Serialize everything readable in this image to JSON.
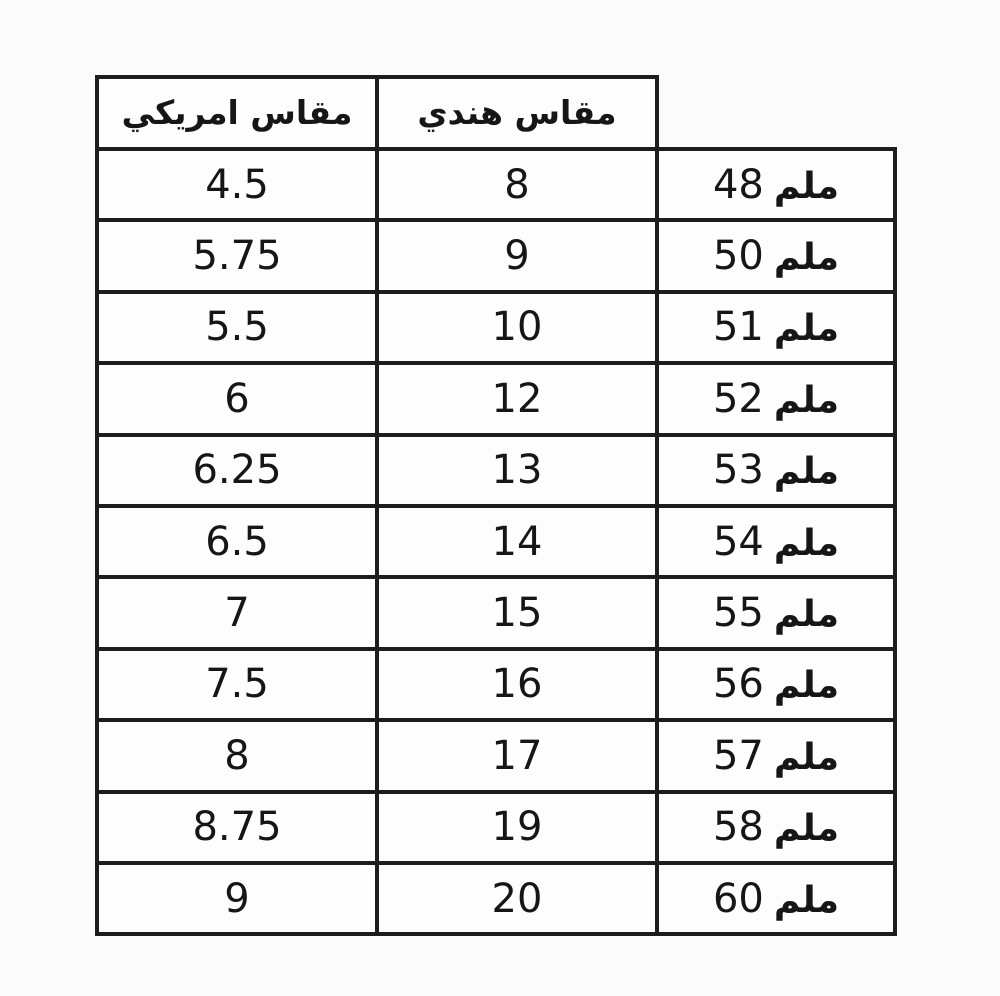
{
  "colors": {
    "background": "#fbfbfb",
    "cell_background": "#fdfdfd",
    "border": "#1d1d1d",
    "text": "#161616"
  },
  "chart_data": {
    "type": "table",
    "title": "",
    "headers": {
      "american": "مقاس امريكي",
      "indian": "مقاس هندي",
      "mm": ""
    },
    "mm_unit": "ملم",
    "rows": [
      {
        "american": "4.5",
        "indian": "8",
        "mm_value": "48"
      },
      {
        "american": "5.75",
        "indian": "9",
        "mm_value": "50"
      },
      {
        "american": "5.5",
        "indian": "10",
        "mm_value": "51"
      },
      {
        "american": "6",
        "indian": "12",
        "mm_value": "52"
      },
      {
        "american": "6.25",
        "indian": "13",
        "mm_value": "53"
      },
      {
        "american": "6.5",
        "indian": "14",
        "mm_value": "54"
      },
      {
        "american": "7",
        "indian": "15",
        "mm_value": "55"
      },
      {
        "american": "7.5",
        "indian": "16",
        "mm_value": "56"
      },
      {
        "american": "8",
        "indian": "17",
        "mm_value": "57"
      },
      {
        "american": "8.75",
        "indian": "19",
        "mm_value": "58"
      },
      {
        "american": "9",
        "indian": "20",
        "mm_value": "60"
      }
    ]
  }
}
